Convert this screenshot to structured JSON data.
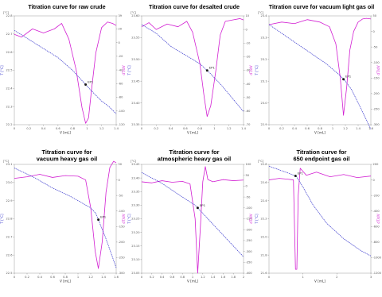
{
  "chart_data": [
    {
      "type": "line",
      "title_lines": [
        "Titration curve for raw crude"
      ],
      "xlabel": "V [mL]",
      "ylabel_left": "T [°C]",
      "ylabel_right": "dT/dV",
      "y_unit_marker": "[°C]",
      "xticks": [
        "0",
        "0.2",
        "0.4",
        "0.6",
        "0.8",
        "1",
        "1.2",
        "1.4"
      ],
      "yticks_left": [
        "22.8",
        "22.7",
        "22.6",
        "22.5",
        "22.4",
        "22.3",
        "22.2"
      ],
      "yticks_right": [
        "39",
        "20",
        "0",
        "-20",
        "-40",
        "-60",
        "-80",
        "-100",
        "-120"
      ],
      "endpoint_label": "EP1",
      "colors": {
        "temperature": "#3a3acd",
        "derivative": "#d21fd2"
      },
      "series": [
        {
          "name": "T [°C]",
          "x": [
            0,
            0.2,
            0.4,
            0.6,
            0.8,
            0.96,
            1.1,
            1.2,
            1.3,
            1.4
          ],
          "y": [
            22.72,
            22.67,
            22.62,
            22.57,
            22.5,
            22.43,
            22.37,
            22.33,
            22.3,
            22.26
          ]
        },
        {
          "name": "dT/dV",
          "x": [
            0,
            0.1,
            0.25,
            0.4,
            0.55,
            0.65,
            0.75,
            0.85,
            0.93,
            0.98,
            1.02,
            1.06,
            1.12,
            1.2,
            1.28,
            1.35,
            1.4
          ],
          "y": [
            12,
            8,
            20,
            14,
            20,
            28,
            5,
            -40,
            -95,
            -118,
            -110,
            -70,
            -15,
            22,
            30,
            28,
            25
          ]
        }
      ]
    },
    {
      "type": "line",
      "title_lines": [
        "Titration curve for desalted crude"
      ],
      "xlabel": "V [mL]",
      "ylabel_left": "T [°C]",
      "ylabel_right": "dT/dV",
      "y_unit_marker": "[°C]",
      "xticks": [
        "0",
        "0.2",
        "0.4",
        "0.6",
        "0.8",
        "1",
        "1.2",
        "1.4"
      ],
      "yticks_left": [
        "23.60",
        "23.55",
        "23.50",
        "23.45",
        "23.40",
        "23.35"
      ],
      "yticks_right": [
        "10",
        "0",
        "-10",
        "-20",
        "-30",
        "-40",
        "-50",
        "-60",
        "-70"
      ],
      "endpoint_label": "EP1",
      "colors": {
        "temperature": "#3a3acd",
        "derivative": "#d21fd2"
      },
      "series": [
        {
          "name": "T [°C]",
          "x": [
            0,
            0.2,
            0.4,
            0.6,
            0.8,
            0.93,
            1.1,
            1.2,
            1.3,
            1.4
          ],
          "y": [
            23.58,
            23.56,
            23.53,
            23.51,
            23.49,
            23.47,
            23.44,
            23.42,
            23.4,
            23.38
          ]
        },
        {
          "name": "dT/dV",
          "x": [
            0,
            0.1,
            0.2,
            0.35,
            0.5,
            0.62,
            0.7,
            0.8,
            0.86,
            0.9,
            0.95,
            1.02,
            1.08,
            1.15,
            1.25,
            1.35,
            1.4
          ],
          "y": [
            2,
            5,
            0,
            4,
            2,
            6,
            -2,
            -25,
            -50,
            -64,
            -56,
            -30,
            -4,
            6,
            7,
            8,
            7
          ]
        }
      ]
    },
    {
      "type": "line",
      "title_lines": [
        "Titration curve for vacuum light gas oil"
      ],
      "xlabel": "V [mL]",
      "ylabel_left": "T [°C]",
      "ylabel_right": "dT/dV",
      "y_unit_marker": "[°C]",
      "xticks": [
        "0",
        "0.2",
        "0.4",
        "0.6",
        "0.8",
        "1",
        "1.2",
        "1.4",
        "1.6"
      ],
      "yticks_left": [
        "23.4",
        "23.3",
        "23.2",
        "23.1",
        "23.0",
        "22.9"
      ],
      "yticks_right": [
        "50",
        "0",
        "-50",
        "-100",
        "-150",
        "-200",
        "-250",
        "-300"
      ],
      "endpoint_label": "EP1",
      "colors": {
        "temperature": "#3a3acd",
        "derivative": "#d21fd2"
      },
      "series": [
        {
          "name": "T [°C]",
          "x": [
            0,
            0.3,
            0.6,
            0.9,
            1.1,
            1.2,
            1.3,
            1.4,
            1.5,
            1.6
          ],
          "y": [
            23.36,
            23.3,
            23.24,
            23.18,
            23.13,
            23.1,
            23.06,
            23.0,
            22.94,
            22.88
          ]
        },
        {
          "name": "dT/dV",
          "x": [
            0,
            0.2,
            0.4,
            0.6,
            0.8,
            0.95,
            1.05,
            1.12,
            1.17,
            1.22,
            1.27,
            1.33,
            1.4,
            1.47,
            1.53,
            1.6
          ],
          "y": [
            22,
            30,
            25,
            38,
            30,
            15,
            -40,
            -150,
            -270,
            -180,
            -60,
            0,
            30,
            40,
            42,
            40
          ]
        }
      ]
    },
    {
      "type": "line",
      "title_lines": [
        "Titration curve for",
        "vacuum heavy gas oil"
      ],
      "xlabel": "V [mL]",
      "ylabel_left": "T [°C]",
      "ylabel_right": "dT/dV",
      "y_unit_marker": "[°C]",
      "xticks": [
        "0",
        "0.2",
        "0.4",
        "0.6",
        "0.8",
        "1",
        "1.2",
        "1.4",
        "1.6"
      ],
      "yticks_left": [
        "23.1",
        "23.0",
        "22.9",
        "22.8",
        "22.7",
        "22.6",
        "22.5"
      ],
      "yticks_right": [
        "50",
        "0",
        "-50",
        "-100",
        "-150",
        "-200",
        "-250",
        "-300"
      ],
      "endpoint_label": "EP1",
      "colors": {
        "temperature": "#3a3acd",
        "derivative": "#d21fd2"
      },
      "series": [
        {
          "name": "T [°C]",
          "x": [
            0,
            0.3,
            0.6,
            0.9,
            1.1,
            1.2,
            1.28,
            1.36,
            1.45,
            1.55,
            1.6
          ],
          "y": [
            23.08,
            23.03,
            22.97,
            22.92,
            22.88,
            22.86,
            22.83,
            22.76,
            22.68,
            22.58,
            22.53
          ]
        },
        {
          "name": "dT/dV",
          "x": [
            0,
            0.2,
            0.4,
            0.6,
            0.8,
            1.0,
            1.12,
            1.2,
            1.27,
            1.32,
            1.38,
            1.44,
            1.5,
            1.56,
            1.6
          ],
          "y": [
            5,
            10,
            18,
            8,
            14,
            12,
            0,
            -90,
            -230,
            -285,
            -200,
            -40,
            40,
            60,
            55
          ]
        }
      ]
    },
    {
      "type": "line",
      "title_lines": [
        "Titration curve for",
        "atmospheric heavy gas oil"
      ],
      "xlabel": "V [mL]",
      "ylabel_left": "T [°C]",
      "ylabel_right": "dT/dV",
      "y_unit_marker": "[°C]",
      "xticks": [
        "0",
        "0.2",
        "0.4",
        "0.6",
        "0.8",
        "1",
        "1.2",
        "1.4",
        "1.6",
        "1.8",
        "2"
      ],
      "yticks_left": [
        "23.45",
        "23.40",
        "23.35",
        "23.30",
        "23.25",
        "23.20",
        "23.15",
        "23.10",
        "23.05"
      ],
      "yticks_right": [
        "100",
        "50",
        "0",
        "-50",
        "-100",
        "-150",
        "-200",
        "-250",
        "-300",
        "-350",
        "-400"
      ],
      "endpoint_label": "EP1",
      "colors": {
        "temperature": "#3a3acd",
        "derivative": "#d21fd2"
      },
      "series": [
        {
          "name": "T [°C]",
          "x": [
            0,
            0.4,
            0.8,
            1.05,
            1.2,
            1.4,
            1.6,
            1.8,
            2.0
          ],
          "y": [
            23.42,
            23.38,
            23.33,
            23.3,
            23.27,
            23.23,
            23.19,
            23.15,
            23.11
          ]
        },
        {
          "name": "dT/dV",
          "x": [
            0,
            0.2,
            0.4,
            0.6,
            0.8,
            0.95,
            1.05,
            1.1,
            1.15,
            1.2,
            1.25,
            1.3,
            1.4,
            1.6,
            1.8,
            2.0
          ],
          "y": [
            20,
            15,
            25,
            18,
            22,
            10,
            -150,
            -400,
            -200,
            20,
            90,
            30,
            20,
            30,
            25,
            28
          ]
        }
      ]
    },
    {
      "type": "line",
      "title_lines": [
        "Titration curve for",
        "650 endpoint gas oil"
      ],
      "xlabel": "V [mL]",
      "ylabel_left": "T [°C]",
      "ylabel_right": "dT/dV",
      "y_unit_marker": "[°C]",
      "xticks": [
        "0",
        "1",
        "2",
        "3"
      ],
      "yticks_left": [
        "22.8",
        "22.6",
        "22.4",
        "22.2",
        "22.0",
        "21.8",
        "21.6"
      ],
      "yticks_right": [
        "200",
        "0",
        "-200",
        "-400",
        "-600",
        "-800",
        "-1000",
        "-1200"
      ],
      "endpoint_label": "EP1",
      "colors": {
        "temperature": "#3a3acd",
        "derivative": "#d21fd2"
      },
      "series": [
        {
          "name": "T [°C]",
          "x": [
            0,
            0.3,
            0.6,
            0.8,
            1.0,
            1.3,
            1.7,
            2.2,
            2.7,
            3.0
          ],
          "y": [
            22.78,
            22.74,
            22.7,
            22.67,
            22.55,
            22.35,
            22.15,
            21.98,
            21.85,
            21.79
          ]
        },
        {
          "name": "dT/dV",
          "x": [
            0,
            0.3,
            0.55,
            0.72,
            0.78,
            0.82,
            0.86,
            0.92,
            1.1,
            1.4,
            1.8,
            2.2,
            2.6,
            3.0
          ],
          "y": [
            0,
            20,
            10,
            0,
            -1150,
            -1150,
            -200,
            150,
            60,
            100,
            40,
            70,
            30,
            50
          ]
        }
      ]
    }
  ]
}
